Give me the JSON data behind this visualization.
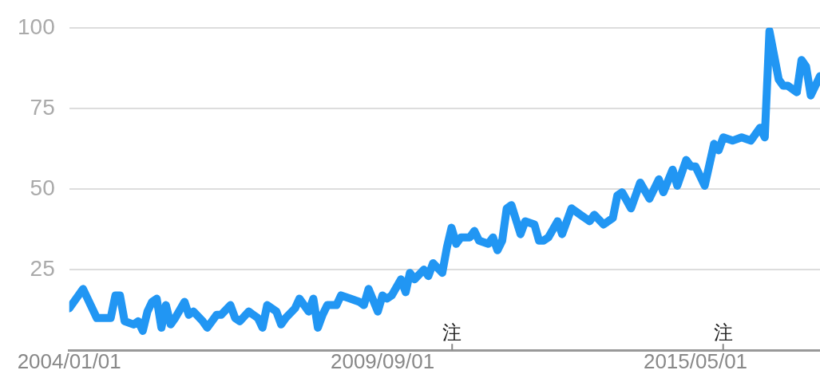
{
  "chart_data": {
    "type": "line",
    "x": [
      "2004-01",
      "2004-04",
      "2004-07",
      "2004-10",
      "2004-11",
      "2004-12",
      "2005-01",
      "2005-03",
      "2005-04",
      "2005-05",
      "2005-06",
      "2005-07",
      "2005-08",
      "2005-09",
      "2005-10",
      "2005-11",
      "2005-12",
      "2006-02",
      "2006-03",
      "2006-04",
      "2006-06",
      "2006-07",
      "2006-09",
      "2006-10",
      "2006-12",
      "2007-01",
      "2007-02",
      "2007-04",
      "2007-05",
      "2007-06",
      "2007-07",
      "2007-08",
      "2007-10",
      "2007-11",
      "2007-12",
      "2008-02",
      "2008-03",
      "2008-05",
      "2008-06",
      "2008-07",
      "2008-08",
      "2008-09",
      "2008-11",
      "2008-12",
      "2009-02",
      "2009-04",
      "2009-05",
      "2009-06",
      "2009-08",
      "2009-09",
      "2009-10",
      "2009-11",
      "2010-01",
      "2010-02",
      "2010-03",
      "2010-04",
      "2010-06",
      "2010-07",
      "2010-08",
      "2010-10",
      "2010-11",
      "2010-12",
      "2011-01",
      "2011-02",
      "2011-04",
      "2011-05",
      "2011-06",
      "2011-08",
      "2011-09",
      "2011-10",
      "2011-11",
      "2011-12",
      "2012-01",
      "2012-03",
      "2012-04",
      "2012-06",
      "2012-07",
      "2012-08",
      "2012-09",
      "2012-11",
      "2012-12",
      "2013-02",
      "2013-04",
      "2013-06",
      "2013-07",
      "2013-09",
      "2013-11",
      "2013-12",
      "2014-01",
      "2014-03",
      "2014-05",
      "2014-07",
      "2014-09",
      "2014-10",
      "2014-12",
      "2015-01",
      "2015-03",
      "2015-04",
      "2015-05",
      "2015-07",
      "2015-09",
      "2015-10",
      "2015-11",
      "2016-01",
      "2016-03",
      "2016-05",
      "2016-07",
      "2016-08",
      "2016-09",
      "2016-11",
      "2016-12",
      "2017-01",
      "2017-03",
      "2017-04",
      "2017-05",
      "2017-06",
      "2017-08"
    ],
    "series": [
      {
        "color": "#2196f3",
        "values": [
          13,
          19,
          10,
          10,
          17,
          17,
          9,
          8,
          9,
          6,
          12,
          15,
          16,
          7,
          14,
          8,
          10,
          15,
          11,
          12,
          9,
          7,
          11,
          11,
          14,
          10,
          9,
          12,
          11,
          10,
          7,
          14,
          12,
          8,
          10,
          13,
          16,
          12,
          16,
          7,
          11,
          14,
          14,
          17,
          16,
          15,
          14,
          19,
          12,
          17,
          16,
          17,
          22,
          18,
          24,
          22,
          25,
          23,
          27,
          24,
          32,
          38,
          33,
          35,
          35,
          37,
          34,
          33,
          35,
          31,
          34,
          44,
          45,
          36,
          40,
          39,
          34,
          34,
          35,
          40,
          36,
          44,
          42,
          40,
          42,
          39,
          41,
          48,
          49,
          44,
          52,
          47,
          53,
          49,
          56,
          51,
          59,
          57,
          57,
          51,
          64,
          62,
          66,
          65,
          66,
          65,
          69,
          66,
          99,
          84,
          82,
          82,
          80,
          90,
          88,
          79,
          85
        ]
      }
    ],
    "xlim": [
      "2004-01",
      "2017-08"
    ],
    "xticks": [
      {
        "value": "2004-01-01",
        "label": "2004/01/01"
      },
      {
        "value": "2009-09-01",
        "label": "2009/09/01"
      },
      {
        "value": "2015-05-01",
        "label": "2015/05/01"
      }
    ],
    "ylim": [
      0,
      100
    ],
    "yticks": [
      25,
      50,
      75,
      100
    ],
    "grid": "y",
    "marker": "none",
    "line_style": "solid",
    "annotations": [
      "注",
      "注"
    ]
  }
}
